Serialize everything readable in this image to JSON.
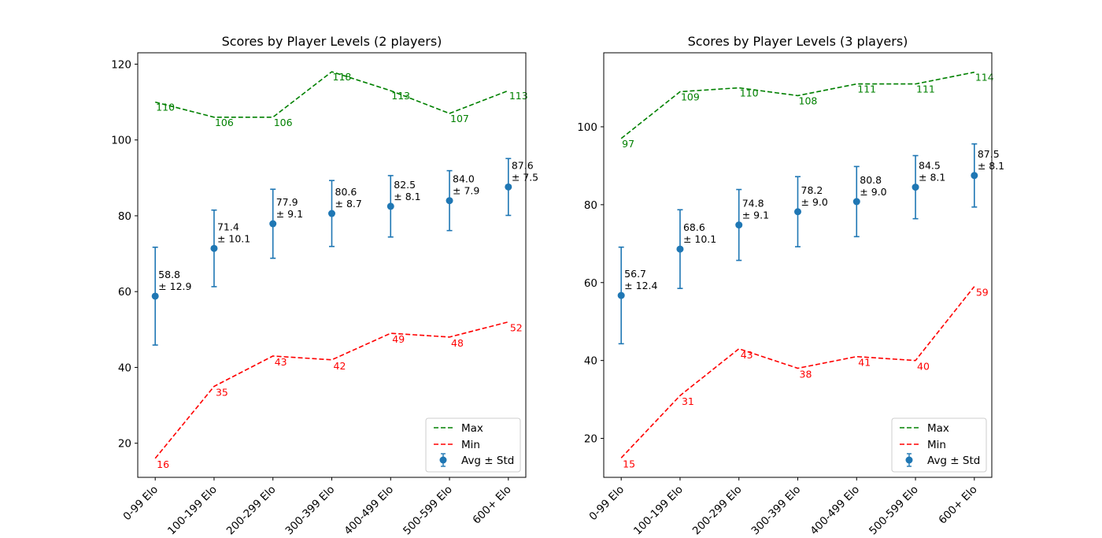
{
  "chart_data": [
    {
      "type": "line",
      "title": "Scores by Player Levels (2 players)",
      "xlabel": "",
      "ylabel": "",
      "categories": [
        "0-99 Elo",
        "100-199 Elo",
        "200-299 Elo",
        "300-399 Elo",
        "400-499 Elo",
        "500-599 Elo",
        "600+ Elo"
      ],
      "ylim": [
        11,
        123
      ],
      "yticks": [
        20,
        40,
        60,
        80,
        100,
        120
      ],
      "grid": false,
      "legend_position": "lower right",
      "series": [
        {
          "name": "Max",
          "kind": "dashed-line",
          "color": "#008000",
          "values": [
            110,
            106,
            106,
            118,
            113,
            107,
            113
          ]
        },
        {
          "name": "Min",
          "kind": "dashed-line",
          "color": "#ff0000",
          "values": [
            16,
            35,
            43,
            42,
            49,
            48,
            52
          ]
        },
        {
          "name": "Avg ± Std",
          "kind": "errorbar",
          "color": "#1f77b4",
          "values": [
            58.8,
            71.4,
            77.9,
            80.6,
            82.5,
            84.0,
            87.6
          ],
          "errors": [
            12.9,
            10.1,
            9.1,
            8.7,
            8.1,
            7.9,
            7.5
          ]
        }
      ],
      "annotations": {
        "max": [
          "110",
          "106",
          "106",
          "118",
          "113",
          "107",
          "113"
        ],
        "min": [
          "16",
          "35",
          "43",
          "42",
          "49",
          "48",
          "52"
        ],
        "avg": [
          [
            "58.8",
            "± 12.9"
          ],
          [
            "71.4",
            "± 10.1"
          ],
          [
            "77.9",
            "± 9.1"
          ],
          [
            "80.6",
            "± 8.7"
          ],
          [
            "82.5",
            "± 8.1"
          ],
          [
            "84.0",
            "± 7.9"
          ],
          [
            "87.6",
            "± 7.5"
          ]
        ]
      }
    },
    {
      "type": "line",
      "title": "Scores by Player Levels (3 players)",
      "xlabel": "",
      "ylabel": "",
      "categories": [
        "0-99 Elo",
        "100-199 Elo",
        "200-299 Elo",
        "300-399 Elo",
        "400-499 Elo",
        "500-599 Elo",
        "600+ Elo"
      ],
      "ylim": [
        10,
        119
      ],
      "yticks": [
        20,
        40,
        60,
        80,
        100
      ],
      "grid": false,
      "legend_position": "lower right",
      "series": [
        {
          "name": "Max",
          "kind": "dashed-line",
          "color": "#008000",
          "values": [
            97,
            109,
            110,
            108,
            111,
            111,
            114
          ]
        },
        {
          "name": "Min",
          "kind": "dashed-line",
          "color": "#ff0000",
          "values": [
            15,
            31,
            43,
            38,
            41,
            40,
            59
          ]
        },
        {
          "name": "Avg ± Std",
          "kind": "errorbar",
          "color": "#1f77b4",
          "values": [
            56.7,
            68.6,
            74.8,
            78.2,
            80.8,
            84.5,
            87.5
          ],
          "errors": [
            12.4,
            10.1,
            9.1,
            9.0,
            9.0,
            8.1,
            8.1
          ]
        }
      ],
      "annotations": {
        "max": [
          "97",
          "109",
          "110",
          "108",
          "111",
          "111",
          "114"
        ],
        "min": [
          "15",
          "31",
          "43",
          "38",
          "41",
          "40",
          "59"
        ],
        "avg": [
          [
            "56.7",
            "± 12.4"
          ],
          [
            "68.6",
            "± 10.1"
          ],
          [
            "74.8",
            "± 9.1"
          ],
          [
            "78.2",
            "± 9.0"
          ],
          [
            "80.8",
            "± 9.0"
          ],
          [
            "84.5",
            "± 8.1"
          ],
          [
            "87.5",
            "± 8.1"
          ]
        ]
      }
    }
  ]
}
